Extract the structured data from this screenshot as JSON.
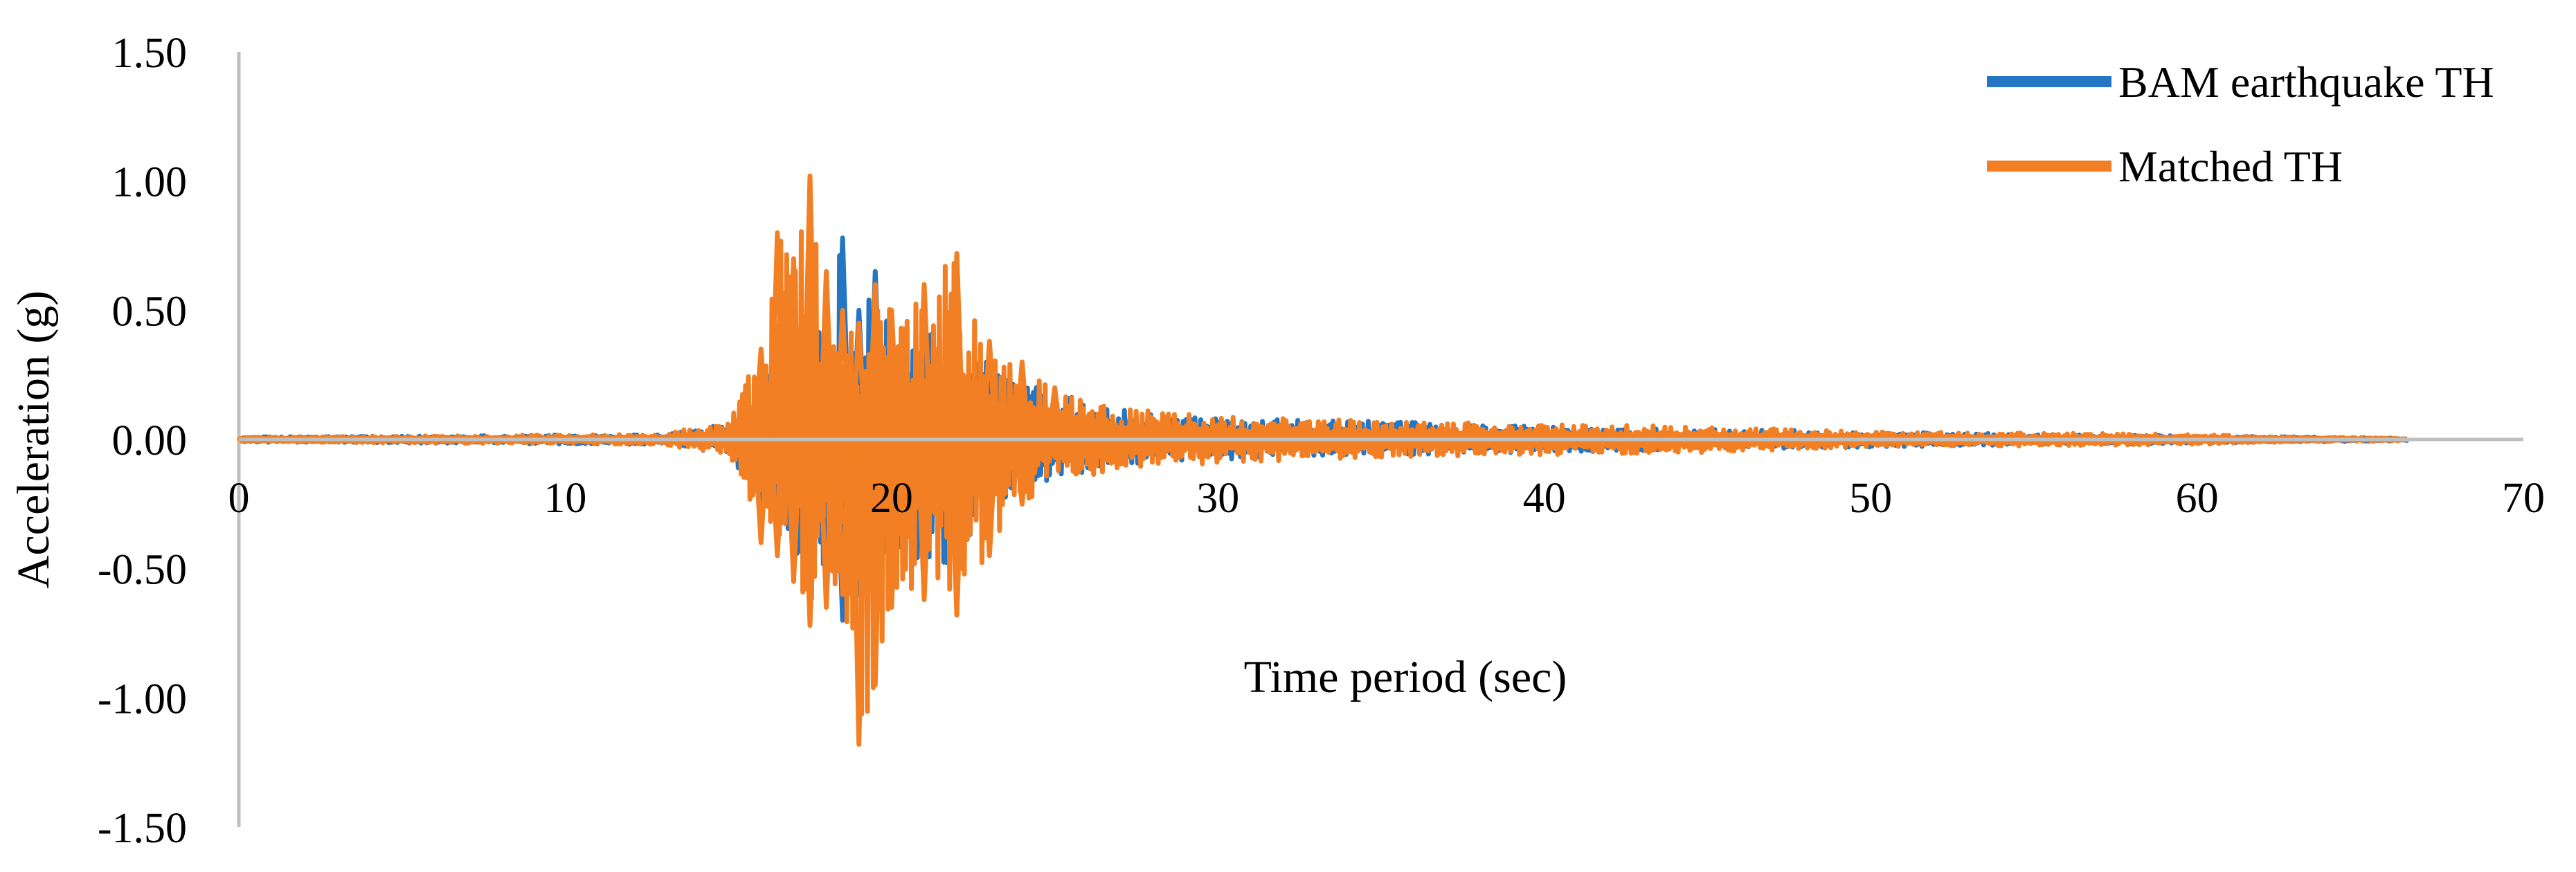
{
  "chart_data": {
    "type": "line",
    "title": "",
    "xlabel": "Time period (sec)",
    "ylabel": "Acceleration (g)",
    "xlim": [
      0,
      70
    ],
    "ylim": [
      -1.5,
      1.5
    ],
    "x_ticks": [
      0,
      10,
      20,
      30,
      40,
      50,
      60,
      70
    ],
    "x_tick_labels": [
      "0",
      "10",
      "20",
      "30",
      "40",
      "50",
      "60",
      "70"
    ],
    "y_ticks": [
      1.5,
      1.0,
      0.5,
      0.0,
      -0.5,
      -1.0,
      -1.5
    ],
    "y_tick_labels": [
      "1.50",
      "1.00",
      "0.50",
      "0.00",
      "-0.50",
      "-1.00",
      "-1.50"
    ],
    "grid": false,
    "legend_position": "top-right",
    "series": [
      {
        "name": "BAM earthquake TH",
        "color": "#2475c3",
        "envelope": {
          "t": [
            0,
            13,
            15,
            16,
            17,
            17.5,
            18,
            18.5,
            19,
            19.5,
            20,
            21,
            22,
            23,
            24,
            25,
            27,
            30,
            35,
            40,
            45,
            50,
            55,
            60,
            63,
            66.5
          ],
          "upper": [
            0.01,
            0.02,
            0.06,
            0.25,
            0.45,
            0.35,
            0.6,
            0.78,
            0.5,
            0.65,
            0.4,
            0.5,
            0.45,
            0.3,
            0.25,
            0.18,
            0.12,
            0.08,
            0.07,
            0.05,
            0.04,
            0.03,
            0.02,
            0.015,
            0.01,
            0.005
          ],
          "lower": [
            -0.01,
            -0.02,
            -0.05,
            -0.3,
            -0.45,
            -0.5,
            -0.55,
            -0.7,
            -0.6,
            -0.5,
            -0.55,
            -0.45,
            -0.5,
            -0.3,
            -0.2,
            -0.15,
            -0.1,
            -0.08,
            -0.06,
            -0.05,
            -0.04,
            -0.03,
            -0.02,
            -0.015,
            -0.01,
            -0.005
          ]
        }
      },
      {
        "name": "Matched TH",
        "color": "#f27f23",
        "envelope": {
          "t": [
            0,
            13,
            15,
            16,
            16.5,
            17,
            17.5,
            18,
            18.5,
            19,
            19.5,
            20,
            21,
            22,
            23,
            24,
            25,
            27,
            30,
            35,
            40,
            45,
            50,
            55,
            60,
            63,
            66.5
          ],
          "upper": [
            0.01,
            0.02,
            0.08,
            0.35,
            0.8,
            0.7,
            1.02,
            0.65,
            0.5,
            0.45,
            0.6,
            0.5,
            0.6,
            0.72,
            0.38,
            0.3,
            0.2,
            0.12,
            0.09,
            0.07,
            0.06,
            0.05,
            0.03,
            0.025,
            0.02,
            0.01,
            0.005
          ],
          "lower": [
            -0.01,
            -0.02,
            -0.06,
            -0.4,
            -0.45,
            -0.55,
            -0.72,
            -0.65,
            -0.6,
            -1.18,
            -0.95,
            -0.65,
            -0.62,
            -0.68,
            -0.45,
            -0.25,
            -0.16,
            -0.12,
            -0.09,
            -0.07,
            -0.06,
            -0.05,
            -0.03,
            -0.025,
            -0.02,
            -0.01,
            -0.005
          ]
        }
      }
    ]
  }
}
